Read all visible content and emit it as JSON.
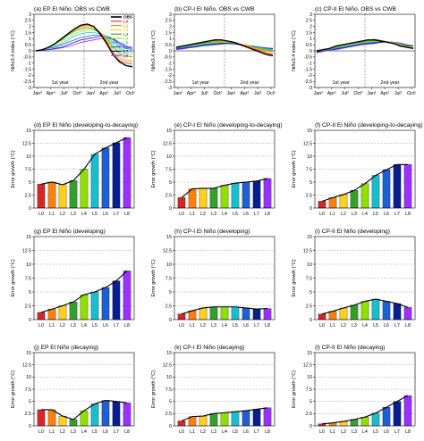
{
  "colors": {
    "OBS": "#000000",
    "L0": "#d62728",
    "L1": "#ff7f0e",
    "L2": "#ffd11a",
    "L3": "#33a02c",
    "L4": "#8fe000",
    "L5": "#17becf",
    "L6": "#1f5fd6",
    "L7": "#0a1f8f",
    "L8": "#9b30ff"
  },
  "chart_data": [
    {
      "id": "a",
      "type": "line",
      "title": "(a) EP El Niño, OBS vs CWB",
      "ylabel": "Niño3.4 index (°C)",
      "ylim": [
        -3,
        3
      ],
      "yticks": [
        -3,
        -2.5,
        -2,
        -1.5,
        -1,
        -0.5,
        0,
        0.5,
        1,
        1.5,
        2,
        2.5,
        3
      ],
      "x_tick_labels": [
        "Jan⁰",
        "Apr⁰",
        "Jul⁰",
        "Oct⁰",
        "Jan¹",
        "Apr¹",
        "Jul¹",
        "Oct¹"
      ],
      "year_labels": [
        "1st year",
        "2nd year"
      ],
      "legend": [
        "OBS",
        "L0",
        "L1",
        "L2",
        "L3",
        "L4",
        "L5",
        "L6",
        "L7",
        "L8"
      ],
      "series": [
        {
          "name": "OBS",
          "values": [
            0.0,
            0.1,
            0.3,
            0.6,
            1.0,
            1.4,
            1.8,
            2.1,
            2.2,
            2.0,
            1.4,
            0.6,
            -0.3,
            -0.9,
            -1.2,
            -1.3
          ]
        },
        {
          "name": "L0",
          "values": [
            0.0,
            0.1,
            0.3,
            0.6,
            1.0,
            1.4,
            1.8,
            2.1,
            2.2,
            2.0,
            1.5,
            0.7,
            -0.3,
            -0.8,
            -1.0,
            -1.1
          ]
        },
        {
          "name": "L1",
          "values": [
            0.0,
            0.1,
            0.3,
            0.6,
            1.0,
            1.4,
            1.7,
            2.0,
            2.1,
            2.0,
            1.5,
            0.8,
            -0.1,
            -0.6,
            -0.8,
            -0.9
          ]
        },
        {
          "name": "L2",
          "values": [
            0.0,
            0.1,
            0.3,
            0.6,
            1.0,
            1.4,
            1.7,
            1.9,
            2.0,
            1.9,
            1.5,
            0.9,
            0.1,
            -0.4,
            -0.6,
            -0.8
          ]
        },
        {
          "name": "L3",
          "values": [
            0.0,
            0.1,
            0.3,
            0.6,
            0.9,
            1.3,
            1.6,
            1.8,
            1.9,
            1.8,
            1.5,
            1.0,
            0.3,
            -0.2,
            -0.4,
            -0.5
          ]
        },
        {
          "name": "L4",
          "values": [
            0.0,
            0.1,
            0.3,
            0.5,
            0.8,
            1.1,
            1.4,
            1.6,
            1.7,
            1.7,
            1.5,
            1.1,
            0.5,
            0.0,
            -0.2,
            -0.3
          ]
        },
        {
          "name": "L5",
          "values": [
            0.0,
            0.1,
            0.2,
            0.4,
            0.6,
            0.9,
            1.2,
            1.4,
            1.5,
            1.5,
            1.4,
            1.2,
            0.7,
            0.2,
            0.0,
            -0.1
          ]
        },
        {
          "name": "L6",
          "values": [
            0.0,
            0.1,
            0.2,
            0.3,
            0.5,
            0.7,
            0.9,
            1.1,
            1.2,
            1.3,
            1.3,
            1.2,
            0.9,
            0.4,
            0.2,
            0.1
          ]
        },
        {
          "name": "L7",
          "values": [
            0.0,
            0.05,
            0.1,
            0.2,
            0.3,
            0.5,
            0.7,
            0.9,
            1.0,
            1.1,
            1.2,
            1.2,
            1.0,
            0.6,
            0.3,
            0.2
          ]
        },
        {
          "name": "L8",
          "values": [
            0.0,
            0.05,
            0.1,
            0.15,
            0.25,
            0.35,
            0.5,
            0.7,
            0.8,
            0.9,
            1.0,
            1.1,
            1.0,
            0.7,
            0.4,
            0.3
          ]
        }
      ]
    },
    {
      "id": "b",
      "type": "line",
      "title": "(b) CP-I El Niño, OBS vs CWB",
      "ylabel": "Niño3.4 index (°C)",
      "ylim": [
        -3,
        3
      ],
      "yticks": [
        -3,
        -2.5,
        -2,
        -1.5,
        -1,
        -0.5,
        0,
        0.5,
        1,
        1.5,
        2,
        2.5,
        3
      ],
      "x_tick_labels": [
        "Jan⁰",
        "Apr⁰",
        "Jul⁰",
        "Oct⁰",
        "Jan¹",
        "Apr¹",
        "Jul¹",
        "Oct¹"
      ],
      "year_labels": [
        "1st year",
        "2nd year"
      ],
      "series": [
        {
          "name": "OBS",
          "values": [
            0.3,
            0.4,
            0.5,
            0.6,
            0.7,
            0.8,
            0.9,
            0.9,
            0.8,
            0.7,
            0.5,
            0.3,
            0.1,
            -0.1,
            -0.3,
            -0.4
          ]
        },
        {
          "name": "L0",
          "values": [
            0.3,
            0.4,
            0.5,
            0.6,
            0.7,
            0.8,
            0.85,
            0.9,
            0.8,
            0.7,
            0.55,
            0.35,
            0.15,
            0.0,
            -0.2,
            -0.3
          ]
        },
        {
          "name": "L1",
          "values": [
            0.3,
            0.4,
            0.5,
            0.6,
            0.7,
            0.8,
            0.85,
            0.85,
            0.8,
            0.7,
            0.55,
            0.4,
            0.2,
            0.05,
            -0.1,
            -0.2
          ]
        },
        {
          "name": "L2",
          "values": [
            0.3,
            0.4,
            0.5,
            0.6,
            0.7,
            0.75,
            0.8,
            0.8,
            0.75,
            0.7,
            0.55,
            0.4,
            0.25,
            0.1,
            0.0,
            -0.1
          ]
        },
        {
          "name": "L3",
          "values": [
            0.3,
            0.4,
            0.5,
            0.55,
            0.65,
            0.7,
            0.75,
            0.75,
            0.75,
            0.65,
            0.55,
            0.4,
            0.3,
            0.15,
            0.05,
            0.0
          ]
        },
        {
          "name": "L4",
          "values": [
            0.3,
            0.35,
            0.45,
            0.5,
            0.6,
            0.65,
            0.7,
            0.7,
            0.7,
            0.65,
            0.55,
            0.45,
            0.3,
            0.2,
            0.1,
            0.05
          ]
        },
        {
          "name": "L5",
          "values": [
            0.25,
            0.3,
            0.4,
            0.45,
            0.55,
            0.6,
            0.65,
            0.7,
            0.7,
            0.65,
            0.55,
            0.45,
            0.35,
            0.25,
            0.15,
            0.1
          ]
        },
        {
          "name": "L6",
          "values": [
            0.2,
            0.25,
            0.35,
            0.4,
            0.5,
            0.55,
            0.6,
            0.65,
            0.65,
            0.6,
            0.55,
            0.45,
            0.35,
            0.25,
            0.2,
            0.15
          ]
        },
        {
          "name": "L7",
          "values": [
            0.15,
            0.2,
            0.3,
            0.35,
            0.45,
            0.5,
            0.55,
            0.6,
            0.6,
            0.6,
            0.5,
            0.45,
            0.35,
            0.3,
            0.2,
            0.2
          ]
        },
        {
          "name": "L8",
          "values": [
            0.1,
            0.15,
            0.25,
            0.3,
            0.4,
            0.45,
            0.5,
            0.55,
            0.6,
            0.55,
            0.5,
            0.45,
            0.4,
            0.3,
            0.25,
            0.2
          ]
        }
      ]
    },
    {
      "id": "c",
      "type": "line",
      "title": "(c) CP-II El Niño, OBS vs CWB",
      "ylabel": "Niño3.4 index (°C)",
      "ylim": [
        -3,
        3
      ],
      "yticks": [
        -3,
        -2.5,
        -2,
        -1.5,
        -1,
        -0.5,
        0,
        0.5,
        1,
        1.5,
        2,
        2.5,
        3
      ],
      "x_tick_labels": [
        "Jan⁰",
        "Apr⁰",
        "Jul⁰",
        "Oct⁰",
        "Jan¹",
        "Apr¹",
        "Jul¹",
        "Oct¹"
      ],
      "year_labels": [
        "1st year",
        "2nd year"
      ],
      "series": [
        {
          "name": "OBS",
          "values": [
            0.0,
            0.1,
            0.2,
            0.4,
            0.5,
            0.6,
            0.7,
            0.8,
            0.9,
            0.9,
            0.8,
            0.7,
            0.6,
            0.4,
            0.3,
            0.2
          ]
        },
        {
          "name": "L0",
          "values": [
            0.0,
            0.1,
            0.2,
            0.4,
            0.5,
            0.6,
            0.7,
            0.8,
            0.9,
            0.95,
            0.85,
            0.7,
            0.6,
            0.45,
            0.3,
            0.2
          ]
        },
        {
          "name": "L1",
          "values": [
            0.0,
            0.1,
            0.2,
            0.35,
            0.5,
            0.6,
            0.7,
            0.8,
            0.9,
            0.9,
            0.85,
            0.75,
            0.6,
            0.45,
            0.35,
            0.25
          ]
        },
        {
          "name": "L2",
          "values": [
            0.0,
            0.1,
            0.2,
            0.35,
            0.45,
            0.55,
            0.65,
            0.75,
            0.85,
            0.9,
            0.85,
            0.75,
            0.65,
            0.5,
            0.35,
            0.3
          ]
        },
        {
          "name": "L3",
          "values": [
            0.0,
            0.1,
            0.2,
            0.3,
            0.45,
            0.55,
            0.65,
            0.7,
            0.8,
            0.85,
            0.85,
            0.75,
            0.65,
            0.5,
            0.4,
            0.3
          ]
        },
        {
          "name": "L4",
          "values": [
            0.0,
            0.05,
            0.15,
            0.3,
            0.4,
            0.5,
            0.6,
            0.7,
            0.75,
            0.8,
            0.8,
            0.75,
            0.65,
            0.55,
            0.4,
            0.35
          ]
        },
        {
          "name": "L5",
          "values": [
            0.0,
            0.05,
            0.15,
            0.25,
            0.35,
            0.45,
            0.55,
            0.65,
            0.7,
            0.75,
            0.8,
            0.75,
            0.7,
            0.55,
            0.45,
            0.35
          ]
        },
        {
          "name": "L6",
          "values": [
            -0.05,
            0.0,
            0.1,
            0.2,
            0.3,
            0.4,
            0.5,
            0.6,
            0.65,
            0.7,
            0.75,
            0.75,
            0.7,
            0.6,
            0.45,
            0.4
          ]
        },
        {
          "name": "L7",
          "values": [
            -0.1,
            0.0,
            0.1,
            0.15,
            0.25,
            0.35,
            0.45,
            0.55,
            0.6,
            0.65,
            0.7,
            0.75,
            0.7,
            0.6,
            0.5,
            0.4
          ]
        },
        {
          "name": "L8",
          "values": [
            -0.15,
            -0.05,
            0.05,
            0.1,
            0.2,
            0.3,
            0.4,
            0.5,
            0.55,
            0.6,
            0.7,
            0.75,
            0.7,
            0.65,
            0.5,
            0.45
          ]
        }
      ]
    },
    {
      "id": "d",
      "type": "bar",
      "title": "(d) EP El Niño (developing-to-decaying)",
      "ylabel": "Error growth (°C)",
      "ylim": [
        0,
        15
      ],
      "yticks": [
        0,
        2.5,
        5,
        7.5,
        10,
        12.5,
        15
      ],
      "categories": [
        "L0",
        "L1",
        "L2",
        "L3",
        "L4",
        "L5",
        "L6",
        "L7",
        "L8"
      ],
      "values": [
        4.6,
        5.0,
        4.5,
        5.3,
        7.5,
        10.4,
        11.6,
        12.6,
        13.6
      ]
    },
    {
      "id": "e",
      "type": "bar",
      "title": "(e) CP-I El Niño (developing-to-decaying)",
      "ylabel": "Error growth (°C)",
      "ylim": [
        0,
        15
      ],
      "yticks": [
        0,
        2.5,
        5,
        7.5,
        10,
        12.5,
        15
      ],
      "categories": [
        "L0",
        "L1",
        "L2",
        "L3",
        "L4",
        "L5",
        "L6",
        "L7",
        "L8"
      ],
      "values": [
        2.0,
        3.7,
        3.8,
        3.8,
        4.4,
        4.8,
        5.0,
        5.2,
        5.7
      ]
    },
    {
      "id": "f",
      "type": "bar",
      "title": "(f) CP-II El Niño (developing-to-decaying)",
      "ylabel": "Error growth (°C)",
      "ylim": [
        0,
        15
      ],
      "yticks": [
        0,
        2.5,
        5,
        7.5,
        10,
        12.5,
        15
      ],
      "categories": [
        "L0",
        "L1",
        "L2",
        "L3",
        "L4",
        "L5",
        "L6",
        "L7",
        "L8"
      ],
      "values": [
        1.3,
        2.0,
        2.6,
        3.4,
        4.7,
        6.3,
        7.4,
        8.4,
        8.4
      ]
    },
    {
      "id": "g",
      "type": "bar",
      "title": "(g) EP El Niño (developing)",
      "ylabel": "Error growth (°C)",
      "ylim": [
        0,
        15
      ],
      "yticks": [
        0,
        2.5,
        5,
        7.5,
        10,
        12.5,
        15
      ],
      "categories": [
        "L0",
        "L1",
        "L2",
        "L3",
        "L4",
        "L5",
        "L6",
        "L7",
        "L8"
      ],
      "values": [
        1.3,
        1.9,
        2.5,
        3.2,
        4.5,
        5.0,
        5.8,
        7.0,
        8.8
      ]
    },
    {
      "id": "h",
      "type": "bar",
      "title": "(h) CP-I El Niño (developing)",
      "ylabel": "Error growth (°C)",
      "ylim": [
        0,
        15
      ],
      "yticks": [
        0,
        2.5,
        5,
        7.5,
        10,
        12.5,
        15
      ],
      "categories": [
        "L0",
        "L1",
        "L2",
        "L3",
        "L4",
        "L5",
        "L6",
        "L7",
        "L8"
      ],
      "values": [
        1.0,
        1.6,
        2.1,
        2.3,
        2.3,
        2.3,
        2.1,
        1.9,
        2.0
      ]
    },
    {
      "id": "i",
      "type": "bar",
      "title": "(i) CP-II El Niño (developing)",
      "ylabel": "Error growth (°C)",
      "ylim": [
        0,
        15
      ],
      "yticks": [
        0,
        2.5,
        5,
        7.5,
        10,
        12.5,
        15
      ],
      "categories": [
        "L0",
        "L1",
        "L2",
        "L3",
        "L4",
        "L5",
        "L6",
        "L7",
        "L8"
      ],
      "values": [
        1.0,
        1.5,
        2.1,
        2.6,
        3.3,
        3.7,
        3.3,
        2.9,
        2.2
      ]
    },
    {
      "id": "j",
      "type": "bar",
      "title": "(j) EP El Niño (decaying)",
      "ylabel": "Error growth (°C)",
      "ylim": [
        0,
        15
      ],
      "yticks": [
        0,
        2.5,
        5,
        7.5,
        10,
        12.5,
        15
      ],
      "categories": [
        "L0",
        "L1",
        "L2",
        "L3",
        "L4",
        "L5",
        "L6",
        "L7",
        "L8"
      ],
      "values": [
        3.3,
        3.3,
        2.0,
        1.3,
        3.1,
        4.5,
        5.2,
        5.0,
        4.7
      ]
    },
    {
      "id": "k",
      "type": "bar",
      "title": "(k) CP-I El Niño (decaying)",
      "ylabel": "Error growth (°C)",
      "ylim": [
        0,
        15
      ],
      "yticks": [
        0,
        2.5,
        5,
        7.5,
        10,
        12.5,
        15
      ],
      "categories": [
        "L0",
        "L1",
        "L2",
        "L3",
        "L4",
        "L5",
        "L6",
        "L7",
        "L8"
      ],
      "values": [
        1.0,
        1.9,
        2.0,
        2.5,
        2.7,
        2.9,
        3.1,
        3.4,
        3.7
      ]
    },
    {
      "id": "l",
      "type": "bar",
      "title": "(l) CP-II El Niño (decaying)",
      "ylabel": "Error growth (°C)",
      "ylim": [
        0,
        15
      ],
      "yticks": [
        0,
        2.5,
        5,
        7.5,
        10,
        12.5,
        15
      ],
      "categories": [
        "L0",
        "L1",
        "L2",
        "L3",
        "L4",
        "L5",
        "L6",
        "L7",
        "L8"
      ],
      "values": [
        0.4,
        0.6,
        0.9,
        1.3,
        1.8,
        2.6,
        3.8,
        5.0,
        6.2
      ]
    }
  ]
}
